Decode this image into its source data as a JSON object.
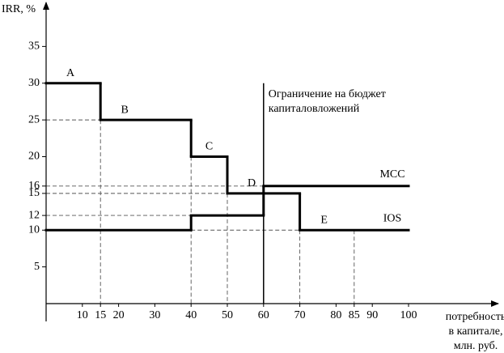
{
  "chart_data": {
    "type": "step",
    "y_label": "IRR, %",
    "x_label": [
      "потребность",
      "в капитале,",
      "млн. руб."
    ],
    "xlim": [
      0,
      100
    ],
    "ylim": [
      0,
      40
    ],
    "xticks": [
      10,
      15,
      20,
      30,
      40,
      50,
      60,
      70,
      80,
      85,
      90,
      100
    ],
    "yticks": [
      5,
      10,
      12,
      15,
      16,
      20,
      25,
      30,
      35
    ],
    "series": [
      {
        "name": "IOS",
        "color": "#000000",
        "x": [
          0,
          15,
          40,
          50,
          70
        ],
        "values": [
          30,
          25,
          20,
          15,
          10
        ],
        "segment_labels": [
          "A",
          "B",
          "C",
          "D",
          "E"
        ]
      },
      {
        "name": "MCC",
        "color": "#000000",
        "x": [
          0,
          40,
          60
        ],
        "values": [
          10,
          12,
          16
        ]
      }
    ],
    "budget_x": 60,
    "budget_label": [
      "Ограничение на бюджет",
      "капиталовложений"
    ]
  }
}
